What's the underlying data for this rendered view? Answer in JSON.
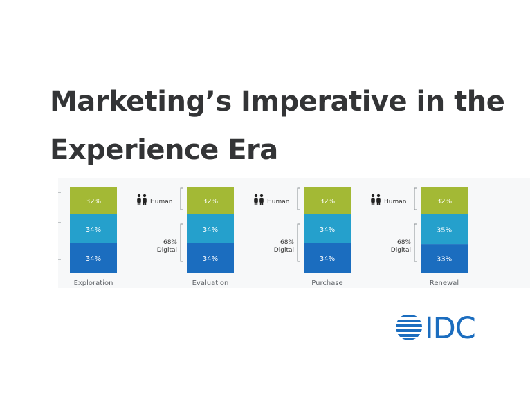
{
  "title": {
    "line1": "Marketing’s Imperative in the",
    "line2": "Experience Era"
  },
  "chart_data": {
    "type": "bar",
    "stacked": true,
    "categories": [
      "Exploration",
      "Evaluation",
      "Purchase",
      "Renewal"
    ],
    "series": [
      {
        "values": [
          34,
          34,
          34,
          33
        ],
        "color": "#1b6dbf"
      },
      {
        "values": [
          34,
          34,
          34,
          35
        ],
        "color": "#25a0cc"
      },
      {
        "values": [
          32,
          32,
          32,
          32
        ],
        "color": "#a3b935"
      }
    ],
    "annotations": {
      "human_label": "Human",
      "digital_value": "68%",
      "digital_label": "Digital",
      "human_icon": "people-icon"
    },
    "ylim": [
      0,
      100
    ],
    "grid": false
  },
  "logo": {
    "text": "IDC",
    "color": "#1b6dbf",
    "icon": "striped-globe-icon"
  }
}
